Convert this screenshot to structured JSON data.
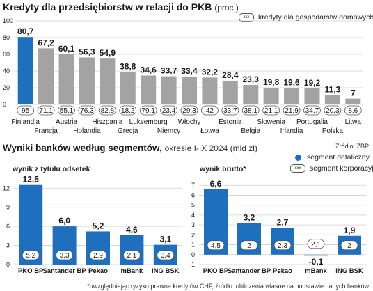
{
  "header": {
    "title": "Kredyty dla przedsiębiorstw w relacji do PKB",
    "title_unit": "(proc.)",
    "legend_pill": "kredyty dla gospodarstw domowych",
    "source": "Źródło: ZBP"
  },
  "section2": {
    "title": "Wyniki banków według segmentów,",
    "subtitle": "okresie I-IX 2024 (mld zł)",
    "legend_detail": "segment detaliczny",
    "legend_corp": "segment korporacyjny",
    "footnote": "*uwzględniając ryzyko prawne kredytów CHF, źródło: obliczenia własne na podstawie danych banków"
  },
  "pill_icon_text": "xxx",
  "colors": {
    "blue": "#1f6fbf",
    "gray": "#a3a3a3",
    "grid": "#cfcfcf"
  },
  "chart_data": [
    {
      "type": "bar",
      "title": "Kredyty dla przedsiębiorstw w relacji do PKB",
      "categories": [
        "Finlandia",
        "Francja",
        "Austria",
        "Holandia",
        "Hiszpania",
        "Grecja",
        "Luksemburg",
        "Niemcy",
        "Włochy",
        "Łotwa",
        "Estonia",
        "Belgia",
        "Słowenia",
        "Irlandia",
        "Portugalia",
        "Polska",
        "Litwa"
      ],
      "values": [
        80.7,
        67.2,
        60.1,
        56.3,
        54.9,
        38.8,
        34.6,
        33.7,
        33.4,
        32.2,
        28.4,
        23.3,
        19.8,
        19.6,
        19.2,
        11.3,
        7
      ],
      "value_labels": [
        "80,7",
        "67,2",
        "60,1",
        "56,3",
        "54,9",
        "38,8",
        "34,6",
        "33,7",
        "33,4",
        "32,2",
        "28,4",
        "23,3",
        "19,8",
        "19,6",
        "19,2",
        "11,3",
        "7"
      ],
      "households_labels": [
        "95",
        "71,1",
        "55,1",
        "76,3",
        "82,8",
        "18,2",
        "79,1",
        "23,4",
        "29,3",
        "42",
        "33,7",
        "38,1",
        "21,1",
        "21,9",
        "34,7",
        "20,3",
        "8,6"
      ],
      "highlight_index": 0,
      "ylim": [
        0,
        100
      ],
      "yticks": [
        "0",
        "20",
        "40",
        "60",
        "80",
        "100"
      ]
    },
    {
      "type": "bar",
      "title": "wynik z tytułu odsetek",
      "categories": [
        "PKO BP",
        "Santander BP",
        "Pekao",
        "mBank",
        "ING BSK"
      ],
      "values": [
        12.5,
        6.0,
        5.2,
        4.6,
        3.1
      ],
      "value_labels": [
        "12,5",
        "6,0",
        "5,2",
        "4,6",
        "3,1"
      ],
      "corporate_labels": [
        "5,2",
        "3,3",
        "2,9",
        "2,1",
        "3,4"
      ],
      "ylim": [
        0,
        14
      ],
      "yticks": [
        "0",
        "3",
        "6",
        "9",
        "12"
      ]
    },
    {
      "type": "bar",
      "title": "wynik brutto*",
      "categories": [
        "PKO BP",
        "Santander BP",
        "Pekao",
        "mBank",
        "ING BSK"
      ],
      "values": [
        6.6,
        3.2,
        2.7,
        -0.1,
        1.9
      ],
      "value_labels": [
        "6,6",
        "3,2",
        "2,7",
        "-0,1",
        "1,9"
      ],
      "corporate_labels": [
        "4,5",
        "2",
        "2,3",
        "2,1",
        "2"
      ],
      "ylim": [
        -1,
        8
      ],
      "yticks": [
        "-1",
        "0",
        "1",
        "2",
        "3",
        "4",
        "5",
        "6",
        "7"
      ]
    }
  ]
}
